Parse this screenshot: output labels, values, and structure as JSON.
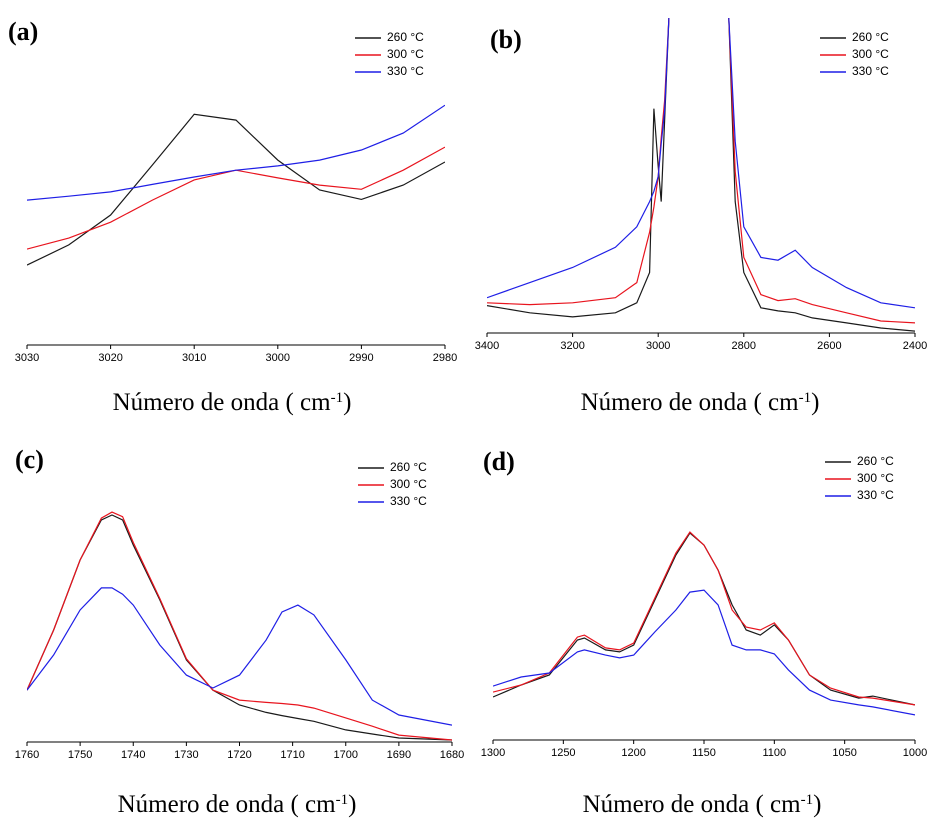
{
  "chart_data": [
    {
      "type": "line",
      "panel": "(a)",
      "xlabel": [
        "Número de onda ( cm",
        "-1",
        ")"
      ],
      "x": [
        3030,
        3025,
        3020,
        3015,
        3010,
        3005,
        3000,
        2995,
        2990,
        2985,
        2980
      ],
      "xlim": [
        3030,
        2980
      ],
      "xticks": [
        3030,
        3020,
        3010,
        3000,
        2990,
        2980
      ],
      "ylim": [
        0,
        100
      ],
      "legend": "upper right",
      "series": [
        {
          "name": "260 °C",
          "color": "#1a1a1a",
          "values": [
            24.6,
            30.8,
            40,
            55.4,
            71,
            69.2,
            56.9,
            47.7,
            44.8,
            49.2,
            56.3
          ]
        },
        {
          "name": "300 °C",
          "color": "#e8141e",
          "values": [
            29.5,
            32.9,
            37.8,
            44.6,
            50.8,
            53.8,
            51.4,
            49.2,
            47.9,
            53.8,
            60.9
          ]
        },
        {
          "name": "330 °C",
          "color": "#1f1fe6",
          "values": [
            44.6,
            45.8,
            47.1,
            49.4,
            51.7,
            53.8,
            55.1,
            56.9,
            60,
            65.2,
            73.8
          ]
        }
      ]
    },
    {
      "type": "line",
      "panel": "(b)",
      "xlabel": [
        "Número de onda ( cm",
        "-1",
        ")"
      ],
      "x": [
        3400,
        3300,
        3200,
        3100,
        3050,
        3020,
        3010,
        3000,
        2993,
        2985,
        2975,
        2900,
        2835,
        2820,
        2800,
        2760,
        2720,
        2680,
        2640,
        2560,
        2480,
        2400
      ],
      "xlim": [
        3400,
        2400
      ],
      "xticks": [
        3400,
        3200,
        3000,
        2800,
        2600,
        2400
      ],
      "ylim": [
        0,
        100
      ],
      "legend": "upper right",
      "series": [
        {
          "name": "260 °C",
          "color": "#1a1a1a",
          "values": [
            8.7,
            6.4,
            5.1,
            6.4,
            9.6,
            19.2,
            71.2,
            52.9,
            41.7,
            67.3,
            100,
            null,
            100,
            41.7,
            19.2,
            8,
            7,
            6.4,
            4.8,
            3.2,
            1.6,
            0.6
          ]
        },
        {
          "name": "300 °C",
          "color": "#e8141e",
          "values": [
            9.6,
            9,
            9.6,
            11.2,
            16,
            32,
            40,
            49.7,
            62,
            73.7,
            100,
            null,
            100,
            51.3,
            24,
            12.2,
            10.3,
            10.9,
            9,
            6.4,
            3.8,
            3.2
          ]
        },
        {
          "name": "330 °C",
          "color": "#1f1fe6",
          "values": [
            11.2,
            16,
            20.8,
            27.2,
            33.7,
            41.7,
            45,
            49.7,
            60,
            70.5,
            100,
            null,
            100,
            60.9,
            33.7,
            24,
            23.1,
            26.3,
            20.8,
            14.4,
            9.6,
            8
          ]
        }
      ]
    },
    {
      "type": "line",
      "panel": "(c)",
      "xlabel": [
        "Número de onda ( cm",
        "-1",
        ")"
      ],
      "x": [
        1760,
        1755,
        1750,
        1746,
        1744,
        1742,
        1740,
        1735,
        1730,
        1725,
        1720,
        1715,
        1712,
        1709,
        1706,
        1700,
        1695,
        1690,
        1680
      ],
      "xlim": [
        1760,
        1680
      ],
      "xticks": [
        1760,
        1750,
        1740,
        1730,
        1720,
        1710,
        1700,
        1690,
        1680
      ],
      "ylim": [
        0,
        100
      ],
      "legend": "upper right",
      "series": [
        {
          "name": "260 °C",
          "color": "#1a1a1a",
          "values": [
            18.1,
            39,
            63.4,
            77.4,
            79.1,
            77.4,
            68.6,
            49.5,
            28.6,
            18.1,
            12.9,
            10.3,
            9.2,
            8.2,
            7.2,
            4.2,
            2.8,
            1.4,
            0.7
          ]
        },
        {
          "name": "300 °C",
          "color": "#e8141e",
          "values": [
            18.1,
            39,
            63.4,
            78,
            80.1,
            78.5,
            69.5,
            50,
            29,
            18.1,
            14.6,
            13.8,
            13.4,
            12.9,
            11.8,
            8.4,
            5.5,
            2.4,
            0.7
          ]
        },
        {
          "name": "330 °C",
          "color": "#1f1fe6",
          "values": [
            18.1,
            30.3,
            46,
            53.7,
            53.7,
            51.5,
            47.7,
            33.8,
            23.3,
            18.8,
            23.3,
            35.5,
            45.3,
            47.7,
            44.3,
            28.6,
            14.6,
            9.4,
            5.9
          ]
        }
      ]
    },
    {
      "type": "line",
      "panel": "(d)",
      "xlabel": [
        "Número de onda ( cm",
        "-1",
        ")"
      ],
      "x": [
        1300,
        1280,
        1260,
        1240,
        1235,
        1220,
        1210,
        1200,
        1185,
        1170,
        1160,
        1150,
        1140,
        1130,
        1120,
        1110,
        1100,
        1090,
        1075,
        1060,
        1040,
        1030,
        1000
      ],
      "xlim": [
        1300,
        1000
      ],
      "xticks": [
        1300,
        1250,
        1200,
        1150,
        1100,
        1050,
        1000
      ],
      "ylim": [
        0,
        100
      ],
      "legend": "upper right",
      "series": [
        {
          "name": "260 °C",
          "color": "#1a1a1a",
          "values": [
            15.1,
            19.3,
            22.8,
            35.1,
            35.8,
            31.6,
            30.9,
            33.3,
            49.1,
            64.9,
            72.6,
            68.4,
            59.6,
            47.4,
            38.6,
            36.8,
            40.4,
            35.1,
            22.8,
            17.5,
            14.7,
            15.4,
            12.3
          ]
        },
        {
          "name": "300 °C",
          "color": "#e8141e",
          "values": [
            16.8,
            19.3,
            23.5,
            36.1,
            36.8,
            32.3,
            31.6,
            34,
            49.8,
            65.6,
            73,
            68.4,
            59.6,
            45.6,
            39.6,
            38.6,
            41.1,
            35.1,
            22.8,
            18.2,
            15.1,
            14.7,
            12.3
          ]
        },
        {
          "name": "330 °C",
          "color": "#1f1fe6",
          "values": [
            18.9,
            22.1,
            23.5,
            30.9,
            31.6,
            29.8,
            28.8,
            29.8,
            37.9,
            45.6,
            51.9,
            52.6,
            47.4,
            33.3,
            31.6,
            31.6,
            30.2,
            24.6,
            17.5,
            14,
            12.3,
            11.6,
            8.8
          ]
        }
      ]
    }
  ]
}
